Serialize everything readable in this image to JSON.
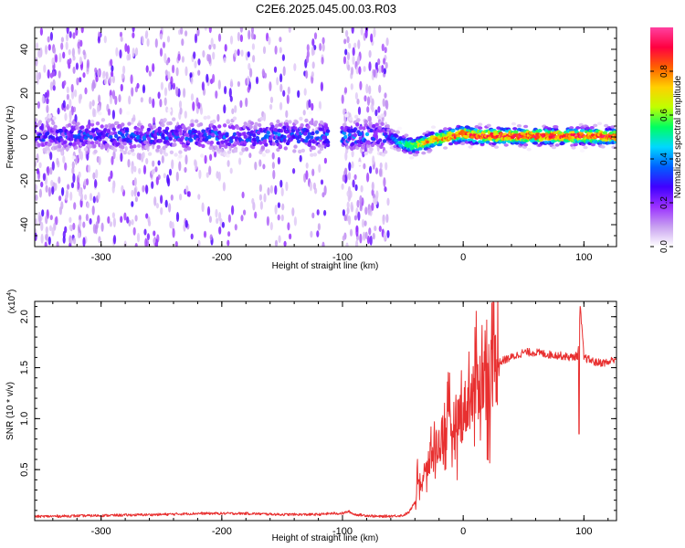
{
  "title": "C2E6.2025.045.00.03.R03",
  "chart_data": [
    {
      "type": "heatmap",
      "xlabel": "Height of straight line (km)",
      "ylabel": "Frequency (Hz)",
      "xlim": [
        -355,
        127
      ],
      "ylim": [
        -50,
        50
      ],
      "xticks": [
        -300,
        -200,
        -100,
        0,
        100
      ],
      "yticks": [
        -40,
        -20,
        0,
        20,
        40
      ],
      "noise_floor_end_km": -62,
      "gap_km": [
        -112,
        -101
      ],
      "noise_bands": [
        {
          "x": [
            -355,
            -300
          ],
          "density": 0.9
        },
        {
          "x": [
            -300,
            -240
          ],
          "density": 0.55
        },
        {
          "x": [
            -240,
            -200
          ],
          "density": 0.45
        },
        {
          "x": [
            -200,
            -112
          ],
          "density": 0.35
        },
        {
          "x": [
            -100,
            -62
          ],
          "density": 0.9
        }
      ],
      "carrier_track": [
        {
          "x": -355,
          "f": 0.5,
          "amp": 0.25
        },
        {
          "x": -62,
          "f": 0.5,
          "amp": 0.3
        },
        {
          "x": -50,
          "f": -3,
          "amp": 0.55
        },
        {
          "x": -40,
          "f": -4,
          "amp": 0.7
        },
        {
          "x": -25,
          "f": -1.5,
          "amp": 0.85
        },
        {
          "x": -10,
          "f": 0.2,
          "amp": 0.9
        },
        {
          "x": 0,
          "f": 1.5,
          "amp": 0.95
        },
        {
          "x": 10,
          "f": 0.5,
          "amp": 0.95
        },
        {
          "x": 127,
          "f": 0.3,
          "amp": 0.95
        }
      ],
      "colorbar": {
        "label": "Normalized spectral amplitude",
        "range": [
          0.0,
          1.0
        ],
        "ticks": [
          0.0,
          0.2,
          0.4,
          0.6,
          0.8
        ],
        "tick_labels": [
          "0.0",
          "0.2",
          "0.4",
          "0.6",
          "0.8"
        ],
        "colors": [
          "#ffffff",
          "#c8a0f0",
          "#9a30ff",
          "#4000ff",
          "#0060ff",
          "#00d8ff",
          "#00ff60",
          "#c0ff00",
          "#ffd000",
          "#ff6000",
          "#ff0040",
          "#ff40a0"
        ]
      }
    },
    {
      "type": "line",
      "xlabel": "Height of straight line (km)",
      "ylabel": "SNR (10 * v/v)",
      "y_multiplier_label": "(x10",
      "y_multiplier_exp": "4",
      "y_multiplier_close": ")",
      "xlim": [
        -355,
        127
      ],
      "ylim": [
        0,
        2.15
      ],
      "xticks": [
        -300,
        -200,
        -100,
        0,
        100
      ],
      "yticks": [
        0.5,
        1.0,
        1.5,
        2.0
      ],
      "ytick_labels": [
        "0.5",
        "1.0",
        "1.5",
        "2.0"
      ],
      "color": "#e83030",
      "series": [
        {
          "x": [
            -355,
            -300,
            -250,
            -220,
            -200,
            -180,
            -150,
            -120,
            -110,
            -100,
            -95,
            -90,
            -70,
            -50,
            -45,
            -40,
            -37,
            -35,
            -30,
            -25,
            -20,
            -15,
            -10,
            -5,
            0,
            5,
            10,
            15,
            20,
            25,
            30,
            35,
            40,
            50,
            60,
            70,
            80,
            90,
            95,
            97,
            100,
            110,
            120,
            127
          ],
          "y": [
            0.04,
            0.05,
            0.06,
            0.07,
            0.07,
            0.07,
            0.06,
            0.06,
            0.07,
            0.07,
            0.09,
            0.06,
            0.04,
            0.05,
            0.08,
            0.18,
            0.45,
            0.35,
            0.5,
            0.7,
            0.75,
            0.9,
            0.9,
            1.0,
            1.05,
            1.2,
            1.28,
            1.4,
            1.45,
            1.5,
            1.55,
            1.58,
            1.6,
            1.65,
            1.65,
            1.63,
            1.62,
            1.6,
            1.62,
            2.1,
            1.6,
            1.55,
            1.55,
            1.6
          ]
        }
      ]
    }
  ]
}
